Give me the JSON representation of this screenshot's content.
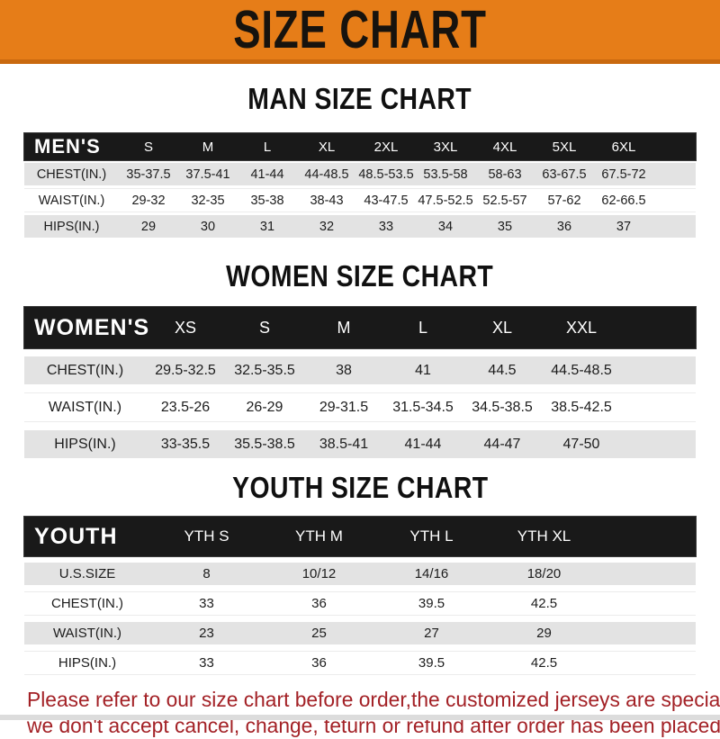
{
  "banner": {
    "title": "SIZE CHART"
  },
  "sections": [
    {
      "title": "MAN SIZE CHART",
      "header_label": "MEN'S",
      "columns": [
        "S",
        "M",
        "L",
        "XL",
        "2XL",
        "3XL",
        "4XL",
        "5XL",
        "6XL"
      ],
      "rows": [
        {
          "label": "CHEST(IN.)",
          "values": [
            "35-37.5",
            "37.5-41",
            "41-44",
            "44-48.5",
            "48.5-53.5",
            "53.5-58",
            "58-63",
            "63-67.5",
            "67.5-72"
          ]
        },
        {
          "label": "WAIST(IN.)",
          "values": [
            "29-32",
            "32-35",
            "35-38",
            "38-43",
            "43-47.5",
            "47.5-52.5",
            "52.5-57",
            "57-62",
            "62-66.5"
          ]
        },
        {
          "label": "HIPS(IN.)",
          "values": [
            "29",
            "30",
            "31",
            "32",
            "33",
            "34",
            "35",
            "36",
            "37"
          ]
        }
      ]
    },
    {
      "title": "WOMEN SIZE CHART",
      "header_label": "WOMEN'S",
      "columns": [
        "XS",
        "S",
        "M",
        "L",
        "XL",
        "XXL"
      ],
      "rows": [
        {
          "label": "CHEST(IN.)",
          "values": [
            "29.5-32.5",
            "32.5-35.5",
            "38",
            "41",
            "44.5",
            "44.5-48.5"
          ]
        },
        {
          "label": "WAIST(IN.)",
          "values": [
            "23.5-26",
            "26-29",
            "29-31.5",
            "31.5-34.5",
            "34.5-38.5",
            "38.5-42.5"
          ]
        },
        {
          "label": "HIPS(IN.)",
          "values": [
            "33-35.5",
            "35.5-38.5",
            "38.5-41",
            "41-44",
            "44-47",
            "47-50"
          ]
        }
      ]
    },
    {
      "title": "YOUTH SIZE CHART",
      "header_label": "YOUTH",
      "columns": [
        "YTH S",
        "YTH M",
        "YTH L",
        "YTH XL"
      ],
      "rows": [
        {
          "label": "U.S.SIZE",
          "values": [
            "8",
            "10/12",
            "14/16",
            "18/20"
          ]
        },
        {
          "label": "CHEST(IN.)",
          "values": [
            "33",
            "36",
            "39.5",
            "42.5"
          ]
        },
        {
          "label": "WAIST(IN.)",
          "values": [
            "23",
            "25",
            "27",
            "29"
          ]
        },
        {
          "label": "HIPS(IN.)",
          "values": [
            "33",
            "36",
            "39.5",
            "42.5"
          ]
        }
      ]
    }
  ],
  "footer": {
    "line1": "Please refer to our size chart before order,the customized jerseys are special products,",
    "line2": "we don't accept cancel, change, teturn or refund after order has been placed!"
  },
  "colors": {
    "banner_orange": "#E67D18",
    "banner_orange_dark": "#C9690F",
    "header_bar_black": "#191919",
    "row_gray": "#E3E3E3",
    "footer_red": "#A32126"
  },
  "chart_data": [
    {
      "type": "table",
      "title": "MAN SIZE CHART",
      "columns": [
        "MEN'S",
        "S",
        "M",
        "L",
        "XL",
        "2XL",
        "3XL",
        "4XL",
        "5XL",
        "6XL"
      ],
      "rows": [
        [
          "CHEST(IN.)",
          "35-37.5",
          "37.5-41",
          "41-44",
          "44-48.5",
          "48.5-53.5",
          "53.5-58",
          "58-63",
          "63-67.5",
          "67.5-72"
        ],
        [
          "WAIST(IN.)",
          "29-32",
          "32-35",
          "35-38",
          "38-43",
          "43-47.5",
          "47.5-52.5",
          "52.5-57",
          "57-62",
          "62-66.5"
        ],
        [
          "HIPS(IN.)",
          "29",
          "30",
          "31",
          "32",
          "33",
          "34",
          "35",
          "36",
          "37"
        ]
      ]
    },
    {
      "type": "table",
      "title": "WOMEN SIZE CHART",
      "columns": [
        "WOMEN'S",
        "XS",
        "S",
        "M",
        "L",
        "XL",
        "XXL"
      ],
      "rows": [
        [
          "CHEST(IN.)",
          "29.5-32.5",
          "32.5-35.5",
          "38",
          "41",
          "44.5",
          "44.5-48.5"
        ],
        [
          "WAIST(IN.)",
          "23.5-26",
          "26-29",
          "29-31.5",
          "31.5-34.5",
          "34.5-38.5",
          "38.5-42.5"
        ],
        [
          "HIPS(IN.)",
          "33-35.5",
          "35.5-38.5",
          "38.5-41",
          "41-44",
          "44-47",
          "47-50"
        ]
      ]
    },
    {
      "type": "table",
      "title": "YOUTH SIZE CHART",
      "columns": [
        "YOUTH",
        "YTH S",
        "YTH M",
        "YTH L",
        "YTH XL"
      ],
      "rows": [
        [
          "U.S.SIZE",
          "8",
          "10/12",
          "14/16",
          "18/20"
        ],
        [
          "CHEST(IN.)",
          "33",
          "36",
          "39.5",
          "42.5"
        ],
        [
          "WAIST(IN.)",
          "23",
          "25",
          "27",
          "29"
        ],
        [
          "HIPS(IN.)",
          "33",
          "36",
          "39.5",
          "42.5"
        ]
      ]
    }
  ]
}
